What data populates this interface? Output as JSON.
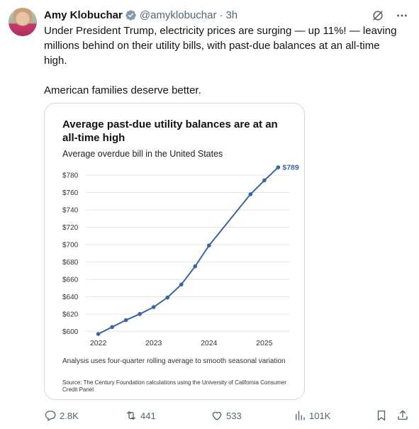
{
  "tweet": {
    "author_name": "Amy Klobuchar",
    "handle": "@amyklobuchar",
    "separator": "·",
    "time": "3h",
    "paragraphs": [
      "Under President Trump, electricity prices are surging — up 11%! — leaving millions behind on their utility bills, with past-due balances at an all-time high.",
      "American families deserve better."
    ]
  },
  "actions": {
    "replies": "2.8K",
    "reposts": "441",
    "likes": "533",
    "views": "101K"
  },
  "icons": {
    "verified": "verified-badge-icon",
    "grok": "grok-icon",
    "more": "more-icon",
    "reply": "reply-icon",
    "repost": "repost-icon",
    "like": "heart-icon",
    "views": "views-icon",
    "bookmark": "bookmark-icon",
    "share": "share-icon"
  },
  "colors": {
    "line": "#3b64a5",
    "text_secondary": "#536471",
    "verified": "#829aab"
  },
  "chart_data": {
    "type": "line",
    "title": "Average past-due utility balances are at an all-time high",
    "subtitle": "Average overdue bill in the United States",
    "x": [
      2022.0,
      2022.25,
      2022.5,
      2022.75,
      2023.0,
      2023.25,
      2023.5,
      2023.75,
      2024.0,
      2024.75,
      2025.0,
      2025.25
    ],
    "series": [
      {
        "values": [
          597,
          605,
          613,
          620,
          628,
          639,
          654,
          675,
          699,
          758,
          774,
          789
        ]
      }
    ],
    "yticks": [
      600,
      620,
      640,
      660,
      680,
      700,
      720,
      740,
      760,
      780
    ],
    "ytick_labels": [
      "$600",
      "$620",
      "$640",
      "$660",
      "$680",
      "$700",
      "$720",
      "$740",
      "$760",
      "$780"
    ],
    "xticks": [
      2022,
      2023,
      2024,
      2025
    ],
    "xtick_labels": [
      "2022",
      "2023",
      "2024",
      "2025"
    ],
    "xlim": [
      2021.8,
      2025.45
    ],
    "ylim": [
      597,
      789
    ],
    "grid": "horizontal",
    "end_label": "$789",
    "note": "Analysis uses four-quarter rolling average to smooth seasonal variation",
    "source": "Source: The Century Foundation calculations using the University of California Consumer Credit Panel"
  }
}
